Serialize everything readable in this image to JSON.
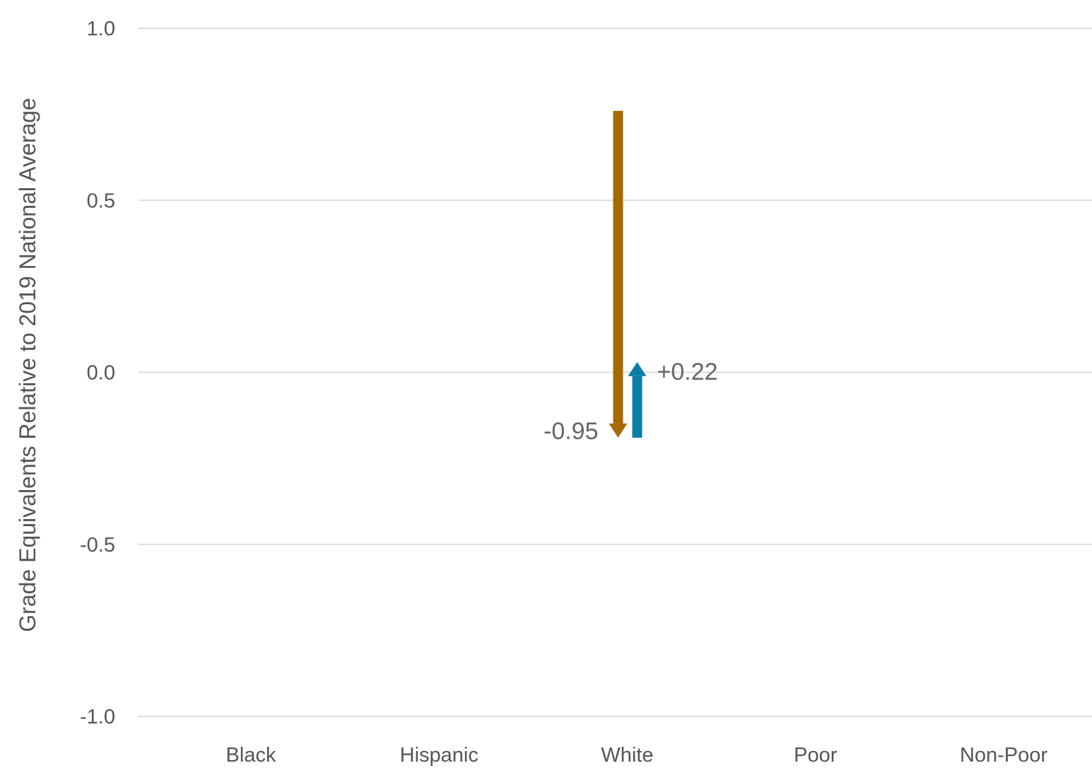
{
  "chart_data": {
    "type": "arrow",
    "ylabel": "Grade Equivalents Relative to 2019 National Average",
    "xlabel": "",
    "ylim": [
      -1.0,
      1.0
    ],
    "yticks": [
      1.0,
      0.5,
      0.0,
      -0.5,
      -1.0
    ],
    "ytick_labels": [
      "1.0",
      "0.5",
      "0.0",
      "-0.5",
      "-1.0"
    ],
    "grid": true,
    "categories": [
      "Black",
      "Hispanic",
      "White",
      "Poor",
      "Non-Poor"
    ],
    "series": [
      {
        "color": "#A66A00",
        "points": [
          {
            "category": "White",
            "start": 0.76,
            "end": -0.19,
            "change_label": "-0.95"
          }
        ]
      },
      {
        "color": "#0A7FA6",
        "points": [
          {
            "category": "White",
            "start": -0.19,
            "end": 0.03,
            "change_label": "+0.22"
          }
        ]
      }
    ]
  }
}
